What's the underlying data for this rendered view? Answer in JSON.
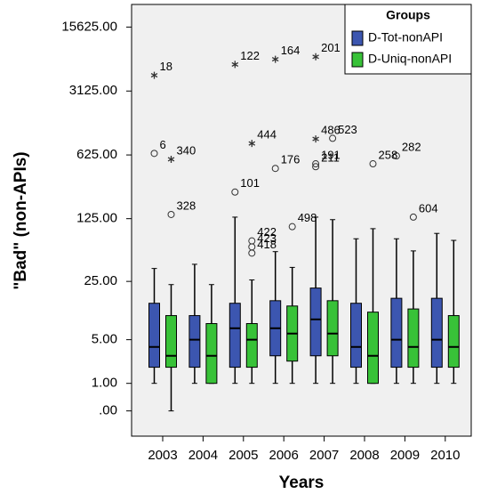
{
  "chart_data": {
    "type": "box",
    "x_label": "Years",
    "y_label": "\"Bad\" (non-APIs)",
    "categories": [
      "2003",
      "2004",
      "2005",
      "2006",
      "2007",
      "2008",
      "2009",
      "2010"
    ],
    "yscale": "log1p",
    "grid": false,
    "ylim": [
      -0.47,
      27600
    ],
    "yticks": [
      {
        "value": 0,
        "label": ".00"
      },
      {
        "value": 1,
        "label": "1.00"
      },
      {
        "value": 5,
        "label": "5.00"
      },
      {
        "value": 25,
        "label": "25.00"
      },
      {
        "value": 125,
        "label": "125.00"
      },
      {
        "value": 625,
        "label": "625.00"
      },
      {
        "value": 3125,
        "label": "3125.00"
      },
      {
        "value": 15625,
        "label": "15625.00"
      }
    ],
    "legend_title": "Groups",
    "legend_position": "upper right",
    "series": [
      {
        "name": "D-Tot-nonAPI",
        "color": "#3c56b0",
        "whisker_high": [
          35,
          39,
          130,
          54,
          130,
          75,
          75,
          86
        ],
        "q3": [
          14,
          10,
          14,
          15,
          21,
          14,
          16,
          16
        ],
        "median": [
          4,
          5,
          7,
          7,
          9,
          4,
          5,
          5
        ],
        "q1": [
          2,
          2,
          2,
          3,
          3,
          2,
          2,
          2
        ],
        "whisker_low": [
          1,
          1,
          1,
          1,
          1,
          1,
          1,
          1
        ],
        "outliers": [
          [
            {
              "label": "18",
              "value": 4640,
              "marker": "star"
            },
            {
              "label": "6",
              "value": 650,
              "marker": "circle"
            }
          ],
          [],
          [
            {
              "label": "122",
              "value": 6100,
              "marker": "star"
            },
            {
              "label": "101",
              "value": 245,
              "marker": "circle"
            }
          ],
          [
            {
              "label": "164",
              "value": 6950,
              "marker": "star"
            },
            {
              "label": "176",
              "value": 445,
              "marker": "circle"
            }
          ],
          [
            {
              "label": "201",
              "value": 7400,
              "marker": "star"
            },
            {
              "label": "486",
              "value": 935,
              "marker": "star"
            },
            {
              "label": "191",
              "value": 500,
              "marker": "circle"
            },
            {
              "label": "211",
              "value": 465,
              "marker": "circle"
            }
          ],
          [],
          [
            {
              "label": "282",
              "value": 610,
              "marker": "circle"
            }
          ],
          []
        ]
      },
      {
        "name": "D-Uniq-nonAPI",
        "color": "#38c238",
        "whisker_high": [
          23,
          23,
          26,
          36,
          122,
          97,
          55,
          72
        ],
        "q3": [
          10,
          8,
          8,
          13,
          15,
          11,
          12,
          10
        ],
        "median": [
          3,
          3,
          5,
          6,
          6,
          3,
          4,
          4
        ],
        "q1": [
          2,
          1,
          2,
          2.5,
          3,
          1,
          2,
          2
        ],
        "whisker_low": [
          0,
          1,
          1,
          1,
          1,
          1,
          1,
          1
        ],
        "outliers": [
          [
            {
              "label": "340",
              "value": 560,
              "marker": "star"
            },
            {
              "label": "328",
              "value": 139,
              "marker": "circle"
            }
          ],
          [],
          [
            {
              "label": "444",
              "value": 835,
              "marker": "star"
            },
            {
              "label": "422",
              "value": 71,
              "marker": "circle"
            },
            {
              "label": "423",
              "value": 61,
              "marker": "circle"
            },
            {
              "label": "418",
              "value": 52,
              "marker": "circle"
            }
          ],
          [
            {
              "label": "498",
              "value": 102,
              "marker": "circle"
            }
          ],
          [
            {
              "label": "523",
              "value": 950,
              "marker": "circle"
            }
          ],
          [
            {
              "label": "258",
              "value": 500,
              "marker": "circle"
            }
          ],
          [
            {
              "label": "604",
              "value": 130,
              "marker": "circle"
            }
          ],
          []
        ]
      }
    ]
  }
}
